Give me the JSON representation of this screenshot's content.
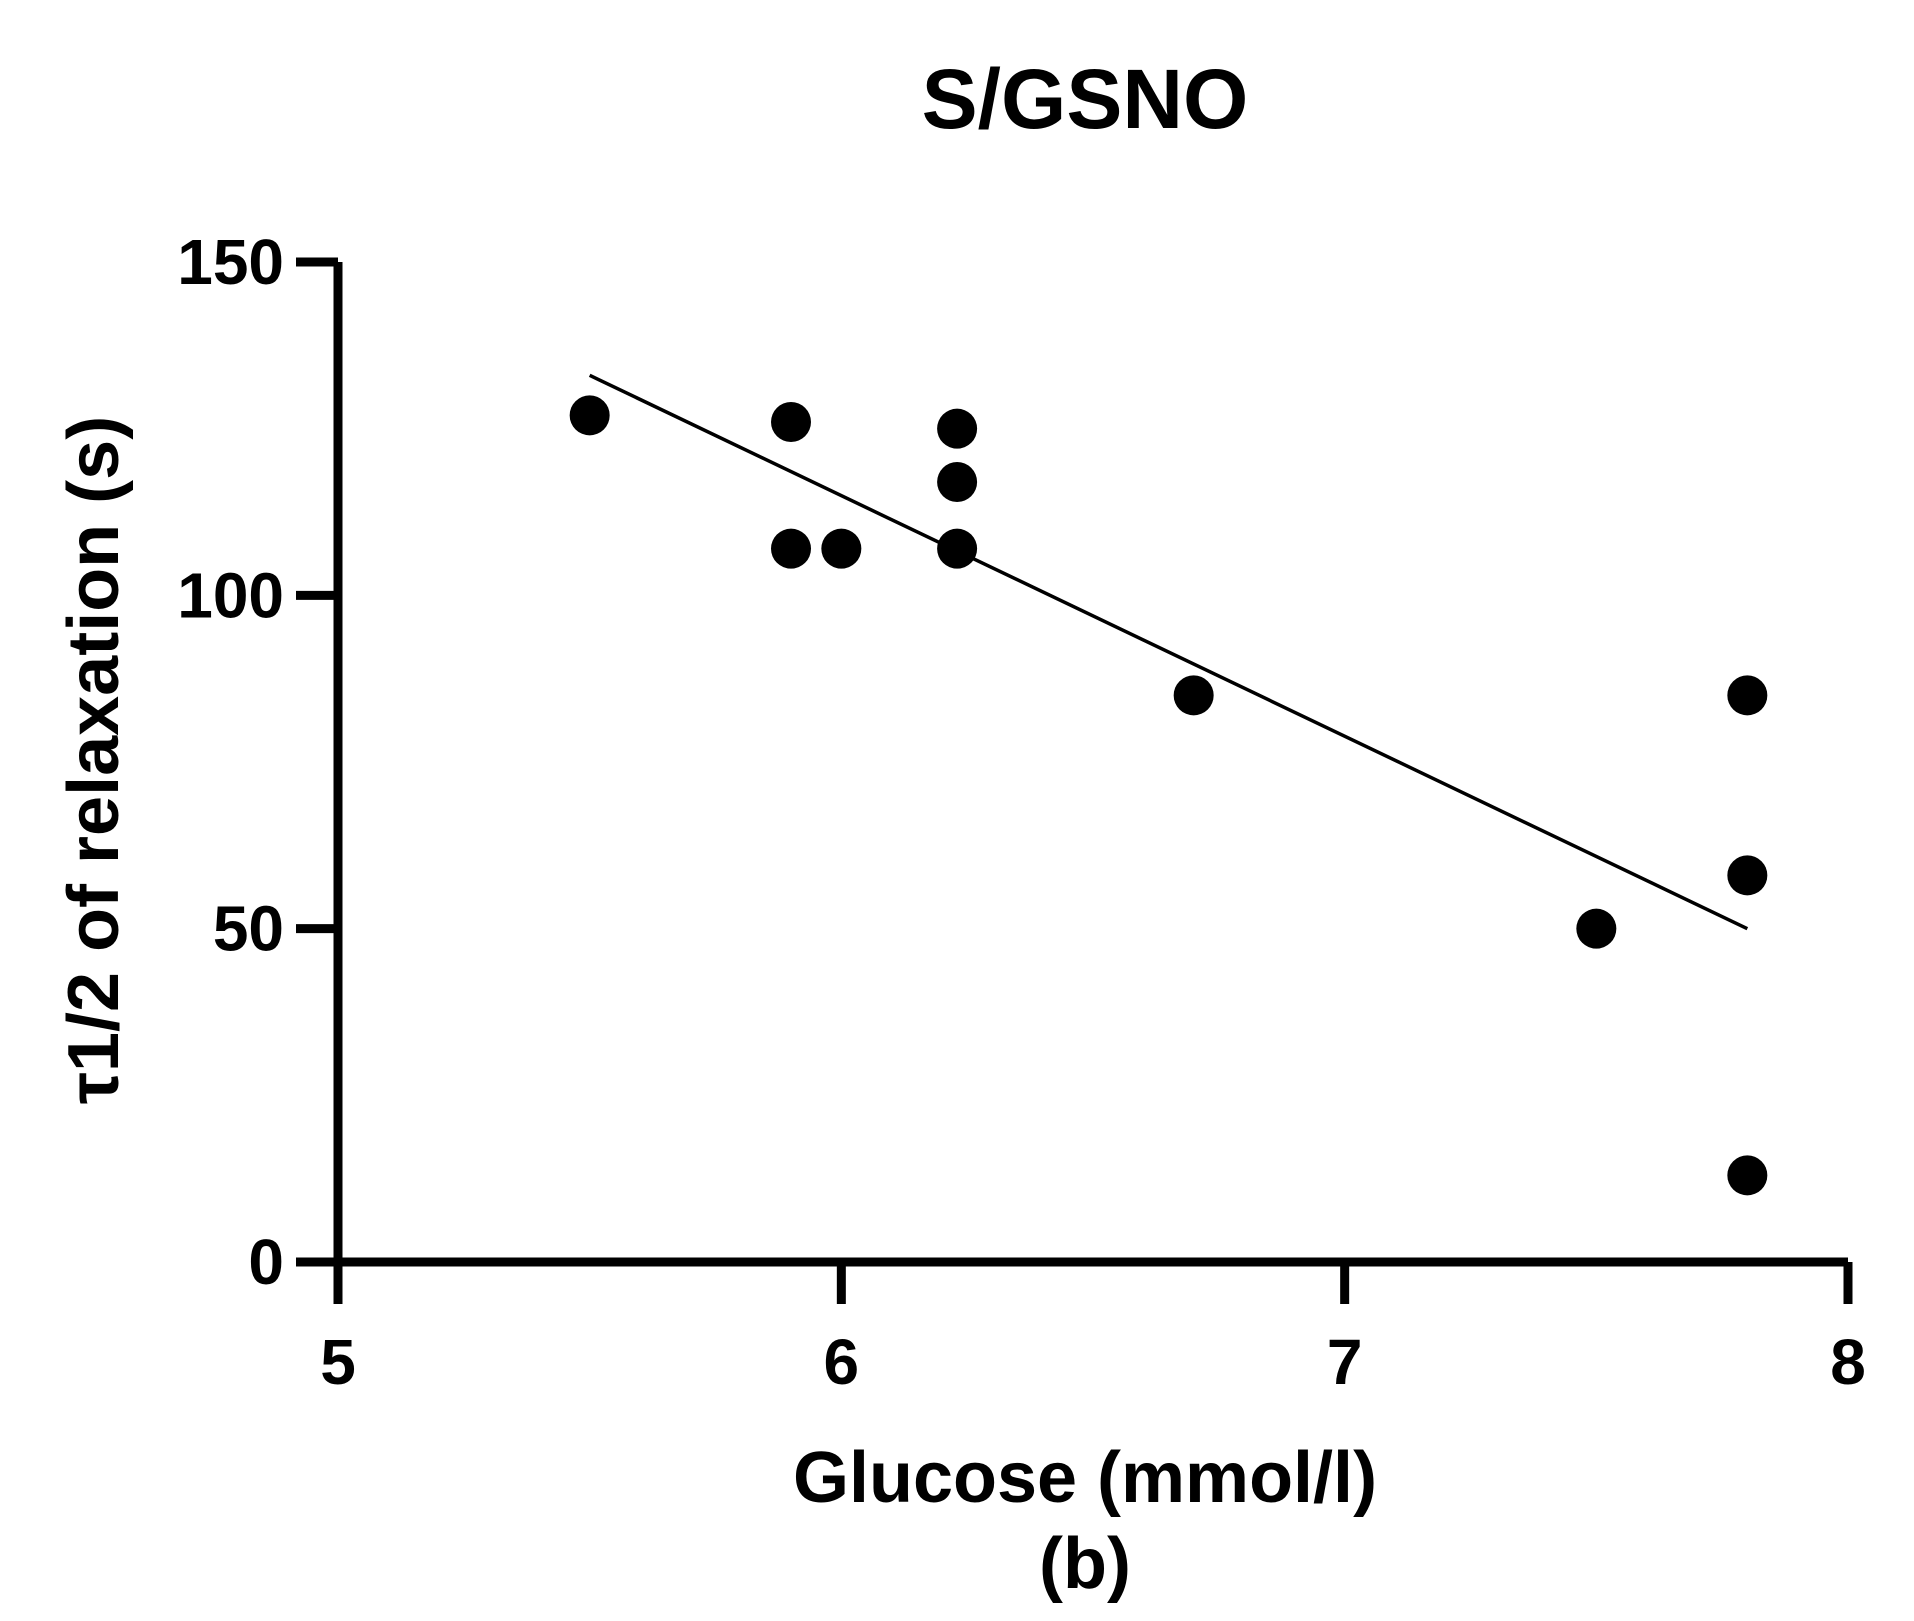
{
  "chart_data": {
    "type": "scatter",
    "title": "S/GSNO",
    "xlabel": "Glucose (mmol/l)",
    "ylabel": "τ1/2 of relaxation (s)",
    "panel_label": "(b)",
    "xlim": [
      5,
      8
    ],
    "ylim": [
      0,
      150
    ],
    "x_ticks": [
      "5",
      "6",
      "7",
      "8"
    ],
    "y_ticks": [
      "0",
      "50",
      "100",
      "150"
    ],
    "grid": false,
    "legend": "none",
    "points": [
      {
        "x": 5.5,
        "y": 127
      },
      {
        "x": 5.9,
        "y": 126
      },
      {
        "x": 5.9,
        "y": 107
      },
      {
        "x": 6.0,
        "y": 107
      },
      {
        "x": 6.23,
        "y": 125
      },
      {
        "x": 6.23,
        "y": 117
      },
      {
        "x": 6.23,
        "y": 107
      },
      {
        "x": 6.7,
        "y": 85
      },
      {
        "x": 7.5,
        "y": 50
      },
      {
        "x": 7.8,
        "y": 85
      },
      {
        "x": 7.8,
        "y": 58
      },
      {
        "x": 7.8,
        "y": 13
      }
    ],
    "regression_line": {
      "x": [
        5.5,
        7.8
      ],
      "y": [
        133,
        50
      ]
    },
    "colors": {
      "points": "#000000",
      "line": "#000000",
      "axes": "#000000"
    }
  }
}
